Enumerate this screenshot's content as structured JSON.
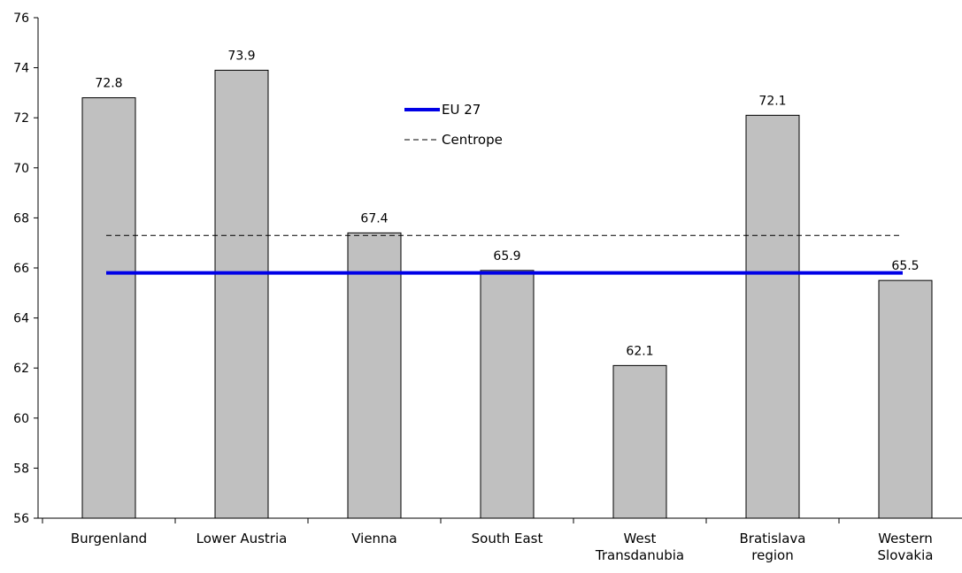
{
  "chart_data": {
    "type": "bar",
    "categories": [
      [
        "Burgenland"
      ],
      [
        "Lower Austria"
      ],
      [
        "Vienna"
      ],
      [
        "South East"
      ],
      [
        "West",
        "Transdanubia"
      ],
      [
        "Bratislava",
        "region"
      ],
      [
        "Western",
        "Slovakia"
      ]
    ],
    "values": [
      72.8,
      73.9,
      67.4,
      65.9,
      62.1,
      72.1,
      65.5
    ],
    "data_labels": [
      "72.8",
      "73.9",
      "67.4",
      "65.9",
      "62.1",
      "72.1",
      "65.5"
    ],
    "ylim": [
      56,
      76
    ],
    "yticks": [
      56,
      58,
      60,
      62,
      64,
      66,
      68,
      70,
      72,
      74,
      76
    ],
    "bar_color": "#c0c0c0",
    "reference_lines": [
      {
        "name": "EU 27",
        "value": 65.8,
        "color": "#0000e6",
        "style": "solid"
      },
      {
        "name": "Centrope",
        "value": 67.3,
        "color": "#000000",
        "style": "dashed"
      }
    ],
    "legend": {
      "placement": "top-center",
      "entries": [
        "EU 27",
        "Centrope"
      ]
    },
    "grid": false
  }
}
